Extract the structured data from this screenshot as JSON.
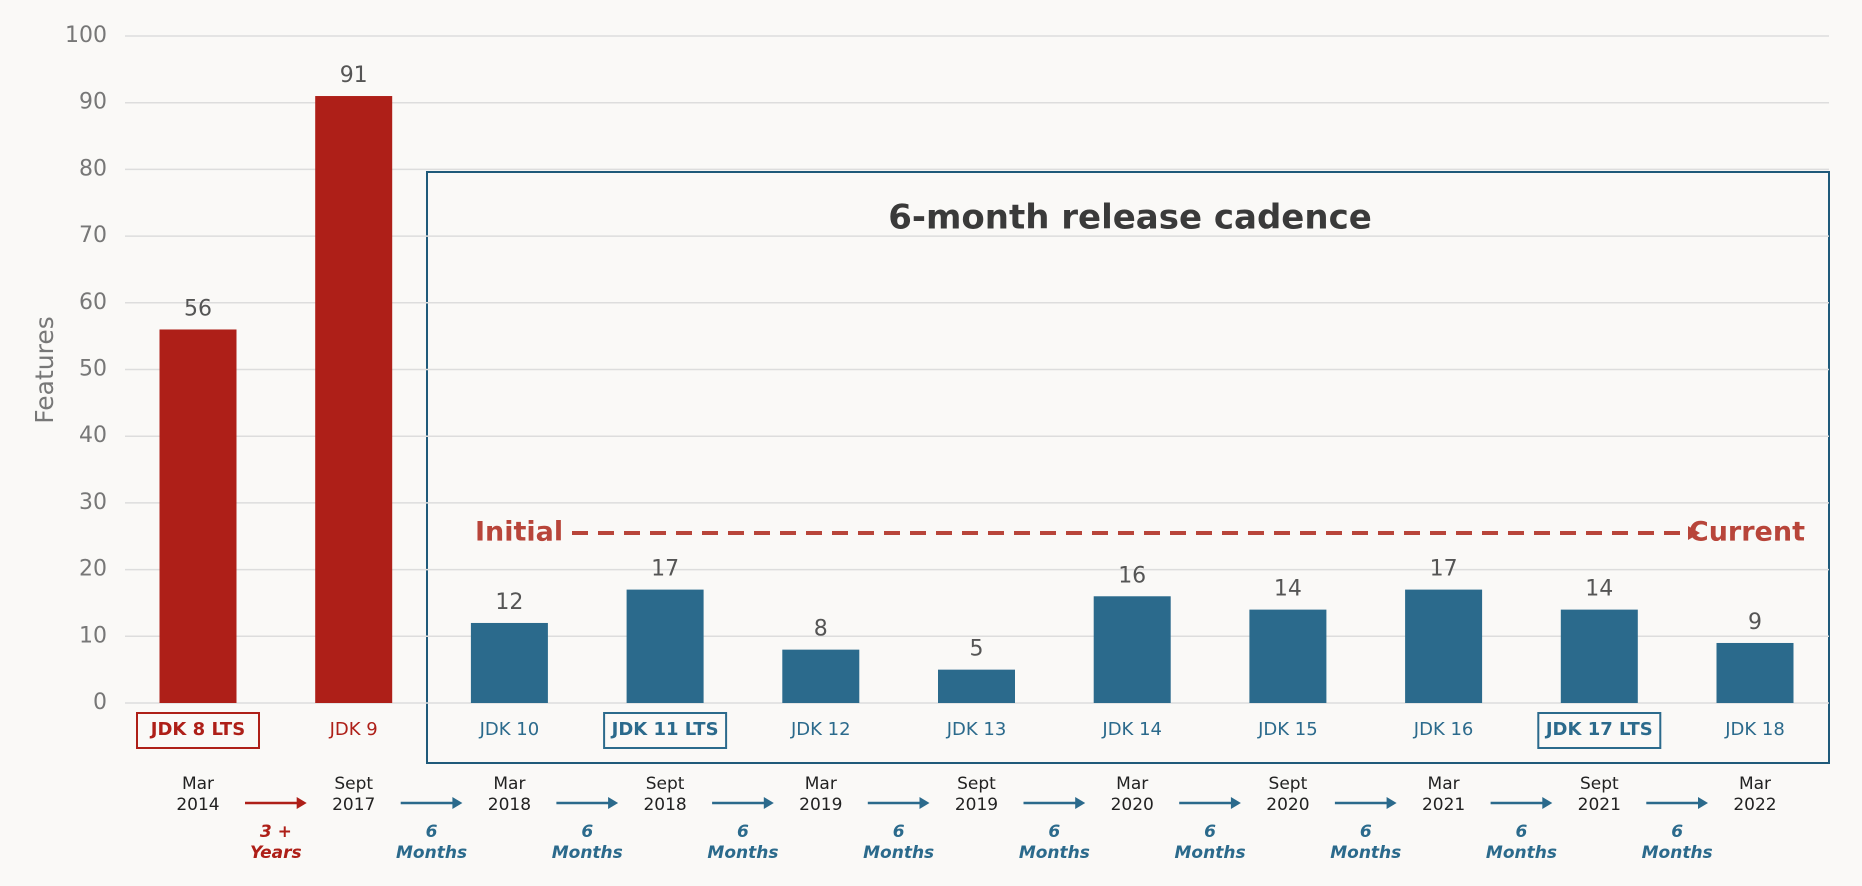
{
  "chart_data": {
    "type": "bar",
    "title": "6-month release cadence",
    "y_label": "Features",
    "categories": [
      "JDK 8 LTS",
      "JDK 9",
      "JDK 10",
      "JDK 11 LTS",
      "JDK 12",
      "JDK 13",
      "JDK 14",
      "JDK 15",
      "JDK 16",
      "JDK 17 LTS",
      "JDK 18"
    ],
    "values": [
      56,
      91,
      12,
      17,
      8,
      5,
      16,
      14,
      17,
      14,
      9
    ],
    "colors": [
      "#ae1f18",
      "#ae1f18",
      "#2b6a8c",
      "#2b6a8c",
      "#2b6a8c",
      "#2b6a8c",
      "#2b6a8c",
      "#2b6a8c",
      "#2b6a8c",
      "#2b6a8c",
      "#2b6a8c"
    ],
    "outlined_categories": [
      0,
      3,
      9
    ],
    "dates": [
      [
        "Mar",
        "2014"
      ],
      [
        "Sept",
        "2017"
      ],
      [
        "Mar",
        "2018"
      ],
      [
        "Sept",
        "2018"
      ],
      [
        "Mar",
        "2019"
      ],
      [
        "Sept",
        "2019"
      ],
      [
        "Mar",
        "2020"
      ],
      [
        "Sept",
        "2020"
      ],
      [
        "Mar",
        "2021"
      ],
      [
        "Sept",
        "2021"
      ],
      [
        "Mar",
        "2022"
      ]
    ],
    "intervals": [
      [
        "3 +",
        "Years"
      ],
      [
        "6",
        "Months"
      ],
      [
        "6",
        "Months"
      ],
      [
        "6",
        "Months"
      ],
      [
        "6",
        "Months"
      ],
      [
        "6",
        "Months"
      ],
      [
        "6",
        "Months"
      ],
      [
        "6",
        "Months"
      ],
      [
        "6",
        "Months"
      ],
      [
        "6",
        "Months"
      ]
    ],
    "trend_start": "Initial",
    "trend_end": "Current",
    "ylim": [
      0,
      100
    ],
    "yticks": [
      0,
      10,
      20,
      30,
      40,
      50,
      60,
      70,
      80,
      90,
      100
    ],
    "grid": true
  }
}
